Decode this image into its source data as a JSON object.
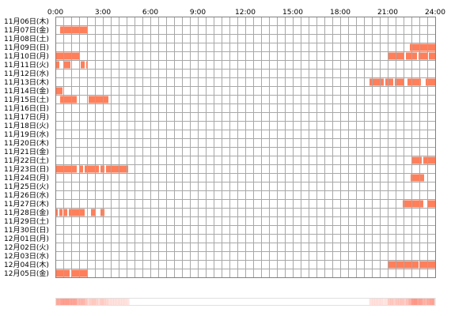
{
  "chart_data": {
    "type": "timeline",
    "x_unit": "hour of day",
    "xlim": [
      0,
      24
    ],
    "x_ticks": [
      "0:00",
      "3:00",
      "6:00",
      "9:00",
      "12:00",
      "15:00",
      "18:00",
      "21:00",
      "24:00"
    ],
    "grid": true,
    "bar_color": "#ff7f5b",
    "density_color": "#ff8c7a",
    "rows": [
      {
        "date": "11月06日(木)",
        "segments": []
      },
      {
        "date": "11月07日(金)",
        "segments": [
          [
            0.3,
            2.0
          ]
        ]
      },
      {
        "date": "11月08日(土)",
        "segments": []
      },
      {
        "date": "11月09日(日)",
        "segments": [
          [
            22.4,
            24.0
          ]
        ]
      },
      {
        "date": "11月10日(月)",
        "segments": [
          [
            0.05,
            1.5
          ],
          [
            21.05,
            22.05
          ],
          [
            22.15,
            22.85
          ],
          [
            22.95,
            23.5
          ],
          [
            23.6,
            24.0
          ]
        ]
      },
      {
        "date": "11月11日(火)",
        "segments": [
          [
            0.0,
            0.25
          ],
          [
            0.55,
            0.95
          ],
          [
            1.6,
            1.85
          ],
          [
            1.95,
            2.05
          ]
        ]
      },
      {
        "date": "11月12日(水)",
        "segments": []
      },
      {
        "date": "11月13日(木)",
        "segments": [
          [
            19.85,
            20.75
          ],
          [
            20.85,
            21.35
          ],
          [
            21.45,
            22.0
          ],
          [
            22.25,
            23.1
          ],
          [
            23.4,
            24.0
          ]
        ]
      },
      {
        "date": "11月14日(金)",
        "segments": [
          [
            0.0,
            0.45
          ]
        ]
      },
      {
        "date": "11月15日(土)",
        "segments": [
          [
            0.3,
            1.35
          ],
          [
            2.1,
            3.35
          ]
        ]
      },
      {
        "date": "11月16日(日)",
        "segments": []
      },
      {
        "date": "11月17日(月)",
        "segments": []
      },
      {
        "date": "11月18日(火)",
        "segments": []
      },
      {
        "date": "11月19日(水)",
        "segments": []
      },
      {
        "date": "11月20日(木)",
        "segments": []
      },
      {
        "date": "11月21日(金)",
        "segments": []
      },
      {
        "date": "11月22日(土)",
        "segments": [
          [
            22.55,
            23.15
          ],
          [
            23.25,
            24.0
          ]
        ]
      },
      {
        "date": "11月23日(日)",
        "segments": [
          [
            0.0,
            1.35
          ],
          [
            1.5,
            1.75
          ],
          [
            1.85,
            2.75
          ],
          [
            2.85,
            3.1
          ],
          [
            3.2,
            4.6
          ]
        ]
      },
      {
        "date": "11月24日(月)",
        "segments": [
          [
            22.45,
            23.3
          ]
        ]
      },
      {
        "date": "11月25日(火)",
        "segments": []
      },
      {
        "date": "11月26日(水)",
        "segments": []
      },
      {
        "date": "11月27日(木)",
        "segments": [
          [
            21.95,
            23.25
          ],
          [
            23.5,
            24.0
          ]
        ]
      },
      {
        "date": "11月28日(金)",
        "segments": [
          [
            0.0,
            0.15
          ],
          [
            0.25,
            0.45
          ],
          [
            0.55,
            0.75
          ],
          [
            0.85,
            1.85
          ],
          [
            2.25,
            2.55
          ],
          [
            2.85,
            3.1
          ]
        ]
      },
      {
        "date": "11月29日(土)",
        "segments": []
      },
      {
        "date": "11月30日(日)",
        "segments": []
      },
      {
        "date": "12月01日(月)",
        "segments": []
      },
      {
        "date": "12月02日(火)",
        "segments": []
      },
      {
        "date": "12月03日(水)",
        "segments": []
      },
      {
        "date": "12月04日(木)",
        "segments": [
          [
            21.0,
            22.95
          ],
          [
            23.05,
            24.0
          ]
        ]
      },
      {
        "date": "12月05日(金)",
        "segments": [
          [
            0.0,
            0.9
          ],
          [
            1.0,
            2.0
          ]
        ]
      }
    ]
  }
}
